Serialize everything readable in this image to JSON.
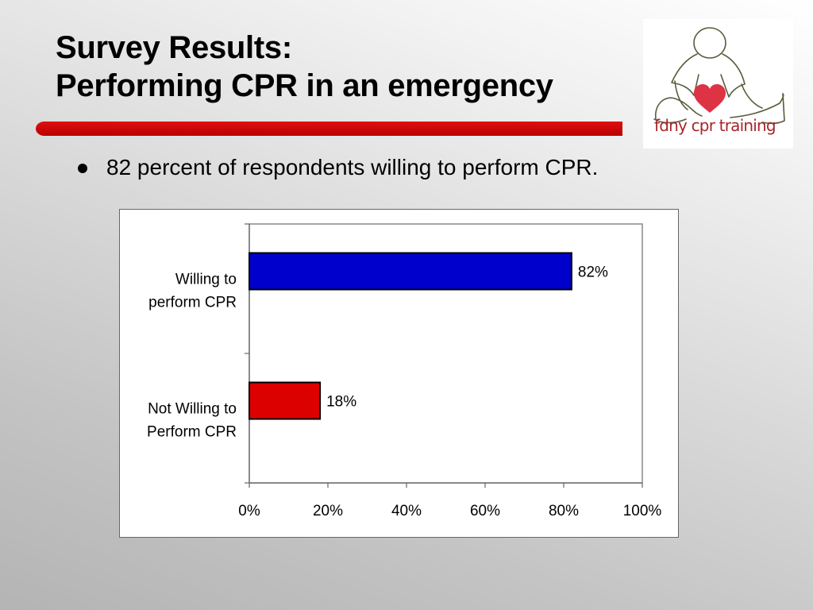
{
  "slide": {
    "title_line1": "Survey Results:",
    "title_line2": "Performing CPR in an emergency",
    "bullet": "82 percent of respondents willing to perform CPR.",
    "accent_color": "#cc0000"
  },
  "logo": {
    "text": "fdny cpr training",
    "text_color": "#a8242a",
    "heart_color": "#dd3344",
    "outline_color": "#5a5a3a"
  },
  "chart_data": {
    "type": "bar",
    "orientation": "horizontal",
    "categories": [
      [
        "Willing to",
        "perform CPR"
      ],
      [
        "Not Willing to",
        "Perform CPR"
      ]
    ],
    "values": [
      82,
      18
    ],
    "data_labels": [
      "82%",
      "18%"
    ],
    "bar_colors": [
      "#0000cc",
      "#dd0000"
    ],
    "xlim": [
      0,
      100
    ],
    "xticks": [
      0,
      20,
      40,
      60,
      80,
      100
    ],
    "xtick_labels": [
      "0%",
      "20%",
      "40%",
      "60%",
      "80%",
      "100%"
    ],
    "grid": false,
    "legend": "none"
  }
}
